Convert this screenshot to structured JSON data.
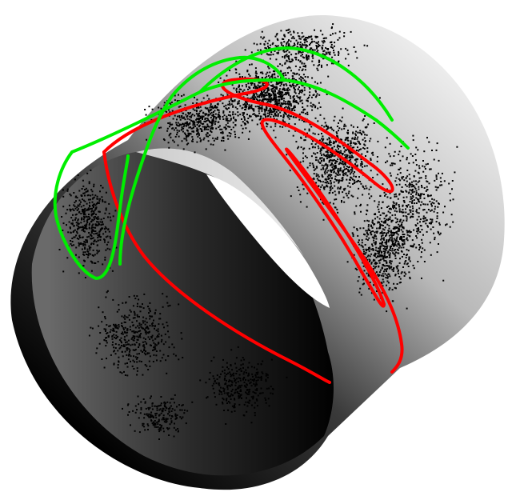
{
  "figure": {
    "subject": "cylinder",
    "background": "#ffffff",
    "surface_light": "#f4f4f4",
    "surface_dark": "#000000",
    "point_color": "#000000",
    "curves": [
      {
        "color": "#ff0000"
      },
      {
        "color": "#00ee00"
      }
    ]
  }
}
